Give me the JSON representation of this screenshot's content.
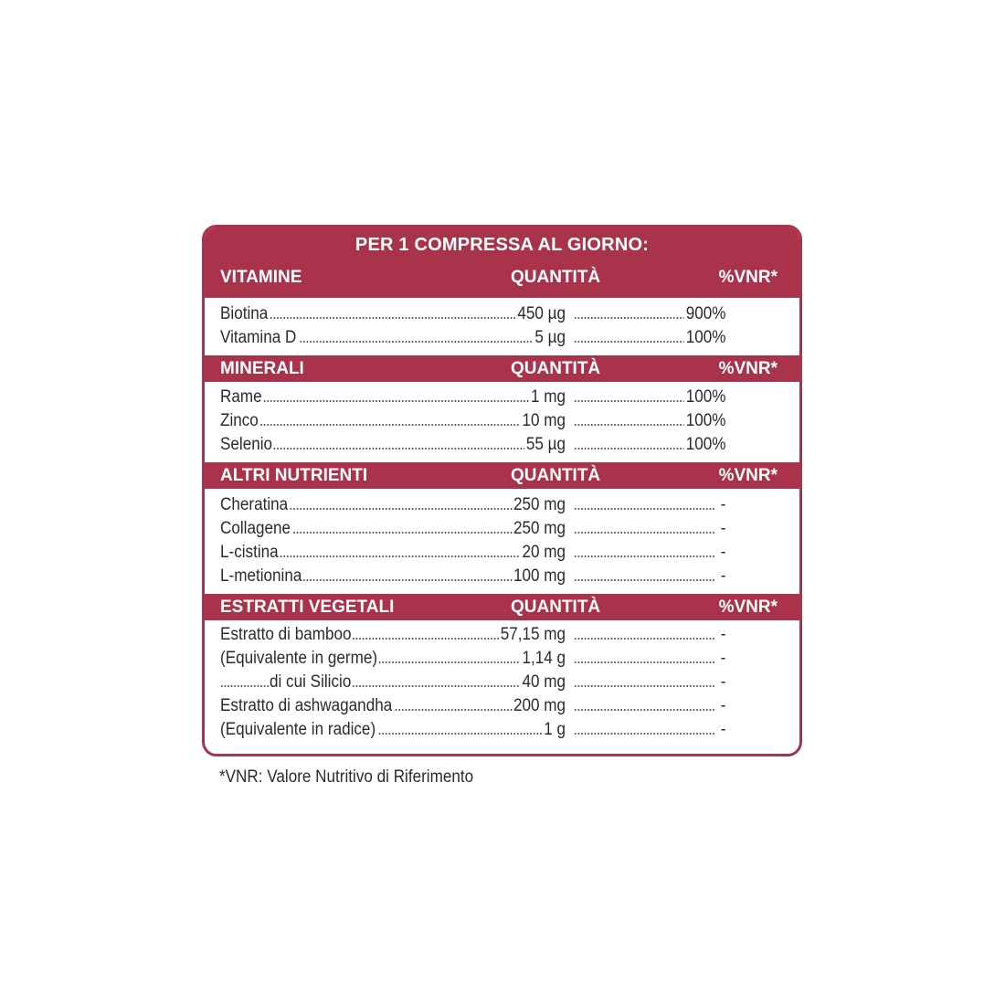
{
  "title": "PER 1 COMPRESSA AL GIORNO:",
  "sections": [
    {
      "name": "VITAMINE",
      "qty_header": "QUANTITÀ",
      "vnr_header": "%VNR*",
      "rows": [
        {
          "name": "Biotina",
          "qty": "450 µg",
          "vnr": "900%"
        },
        {
          "name": "Vitamina D",
          "qty": "5 µg",
          "vnr": "100%"
        }
      ]
    },
    {
      "name": "MINERALI",
      "qty_header": "QUANTITÀ",
      "vnr_header": "%VNR*",
      "rows": [
        {
          "name": "Rame",
          "qty": "1 mg",
          "vnr": "100%"
        },
        {
          "name": "Zinco",
          "qty": "10 mg",
          "vnr": "100%"
        },
        {
          "name": "Selenio",
          "qty": "55 µg",
          "vnr": "100%"
        }
      ]
    },
    {
      "name": "ALTRI NUTRIENTI",
      "qty_header": "QUANTITÀ",
      "vnr_header": "%VNR*",
      "rows": [
        {
          "name": "Cheratina",
          "qty": "250 mg",
          "vnr": "-"
        },
        {
          "name": "Collagene",
          "qty": "250 mg",
          "vnr": "-"
        },
        {
          "name": "L-cistina",
          "qty": "20 mg",
          "vnr": "-"
        },
        {
          "name": "L-metionina",
          "qty": "100 mg",
          "vnr": "-"
        }
      ]
    },
    {
      "name": "ESTRATTI VEGETALI",
      "qty_header": "QUANTITÀ",
      "vnr_header": "%VNR*",
      "rows": [
        {
          "name": "Estratto di bamboo",
          "qty": "57,15 mg",
          "vnr": "-"
        },
        {
          "name": "(Equivalente in germe)",
          "qty": "1,14 g",
          "vnr": "-"
        },
        {
          "name": "di cui Silicio",
          "qty": "40 mg",
          "vnr": "-"
        },
        {
          "name": "Estratto di ashwagandha",
          "qty": "200 mg",
          "vnr": "-"
        },
        {
          "name": "(Equivalente in radice)",
          "qty": "1 g",
          "vnr": "-"
        }
      ]
    }
  ],
  "footnote": "*VNR: Valore Nutritivo di Riferimento",
  "colors": {
    "accent": "#a8334a",
    "text": "#2b2b2b"
  }
}
